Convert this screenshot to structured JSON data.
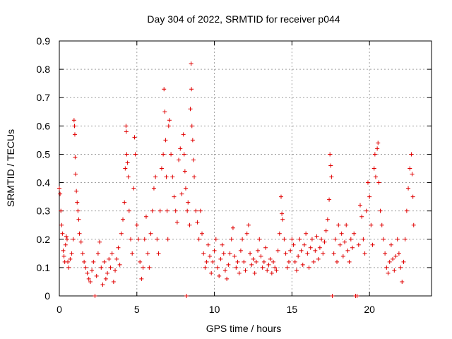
{
  "chart_data": {
    "type": "scatter",
    "title": "Day 304 of 2022, SRMTID for receiver p044",
    "xlabel": "GPS time / hours",
    "ylabel": "SRMTID / TECUs",
    "xlim": [
      0,
      24
    ],
    "ylim": [
      0,
      0.9
    ],
    "xticks": [
      0,
      5,
      10,
      15,
      20
    ],
    "xtick_labels": [
      "0",
      "5",
      "10",
      "15",
      "20"
    ],
    "yticks": [
      0,
      0.1,
      0.2,
      0.3,
      0.4,
      0.5,
      0.6,
      0.7,
      0.8,
      0.9
    ],
    "ytick_labels": [
      "0",
      "0.1",
      "0.2",
      "0.3",
      "0.4",
      "0.5",
      "0.6",
      "0.7",
      "0.8",
      "0.9"
    ],
    "grid": true,
    "marker": "+",
    "color": "#e00000",
    "series": [
      {
        "name": "SRMTID",
        "points": [
          [
            0.0,
            0.38
          ],
          [
            0.05,
            0.36
          ],
          [
            0.1,
            0.3
          ],
          [
            0.15,
            0.25
          ],
          [
            0.2,
            0.22
          ],
          [
            0.25,
            0.16
          ],
          [
            0.3,
            0.14
          ],
          [
            0.35,
            0.12
          ],
          [
            0.4,
            0.18
          ],
          [
            0.45,
            0.21
          ],
          [
            0.5,
            0.2
          ],
          [
            0.55,
            0.12
          ],
          [
            0.6,
            0.1
          ],
          [
            0.7,
            0.13
          ],
          [
            0.8,
            0.15
          ],
          [
            0.9,
            0.2
          ],
          [
            0.95,
            0.62
          ],
          [
            0.98,
            0.6
          ],
          [
            1.0,
            0.57
          ],
          [
            1.02,
            0.49
          ],
          [
            1.05,
            0.43
          ],
          [
            1.1,
            0.37
          ],
          [
            1.15,
            0.33
          ],
          [
            1.2,
            0.3
          ],
          [
            1.25,
            0.27
          ],
          [
            1.3,
            0.22
          ],
          [
            1.4,
            0.19
          ],
          [
            1.5,
            0.15
          ],
          [
            1.6,
            0.12
          ],
          [
            1.7,
            0.1
          ],
          [
            1.8,
            0.08
          ],
          [
            1.9,
            0.06
          ],
          [
            2.0,
            0.05
          ],
          [
            2.1,
            0.09
          ],
          [
            2.2,
            0.12
          ],
          [
            2.3,
            0.0
          ],
          [
            2.4,
            0.07
          ],
          [
            2.5,
            0.15
          ],
          [
            2.6,
            0.19
          ],
          [
            2.7,
            0.1
          ],
          [
            2.8,
            0.04
          ],
          [
            2.9,
            0.12
          ],
          [
            3.0,
            0.06
          ],
          [
            3.1,
            0.08
          ],
          [
            3.2,
            0.13
          ],
          [
            3.3,
            0.1
          ],
          [
            3.4,
            0.15
          ],
          [
            3.5,
            0.05
          ],
          [
            3.6,
            0.09
          ],
          [
            3.7,
            0.13
          ],
          [
            3.8,
            0.17
          ],
          [
            3.9,
            0.11
          ],
          [
            4.0,
            0.22
          ],
          [
            4.1,
            0.27
          ],
          [
            4.2,
            0.33
          ],
          [
            4.25,
            0.45
          ],
          [
            4.3,
            0.6
          ],
          [
            4.32,
            0.58
          ],
          [
            4.35,
            0.5
          ],
          [
            4.4,
            0.47
          ],
          [
            4.45,
            0.42
          ],
          [
            4.5,
            0.3
          ],
          [
            4.6,
            0.2
          ],
          [
            4.7,
            0.15
          ],
          [
            4.8,
            0.38
          ],
          [
            4.85,
            0.56
          ],
          [
            4.9,
            0.5
          ],
          [
            5.0,
            0.25
          ],
          [
            5.1,
            0.2
          ],
          [
            5.2,
            0.12
          ],
          [
            5.3,
            0.06
          ],
          [
            5.4,
            0.1
          ],
          [
            5.5,
            0.2
          ],
          [
            5.6,
            0.28
          ],
          [
            5.7,
            0.15
          ],
          [
            5.8,
            0.1
          ],
          [
            5.9,
            0.22
          ],
          [
            6.0,
            0.3
          ],
          [
            6.1,
            0.38
          ],
          [
            6.2,
            0.42
          ],
          [
            6.3,
            0.2
          ],
          [
            6.4,
            0.15
          ],
          [
            6.5,
            0.3
          ],
          [
            6.6,
            0.45
          ],
          [
            6.7,
            0.5
          ],
          [
            6.75,
            0.73
          ],
          [
            6.8,
            0.65
          ],
          [
            6.85,
            0.55
          ],
          [
            6.9,
            0.42
          ],
          [
            6.95,
            0.3
          ],
          [
            7.0,
            0.2
          ],
          [
            7.05,
            0.6
          ],
          [
            7.1,
            0.62
          ],
          [
            7.2,
            0.5
          ],
          [
            7.3,
            0.42
          ],
          [
            7.4,
            0.35
          ],
          [
            7.5,
            0.3
          ],
          [
            7.6,
            0.26
          ],
          [
            7.7,
            0.48
          ],
          [
            7.8,
            0.52
          ],
          [
            7.9,
            0.36
          ],
          [
            8.0,
            0.57
          ],
          [
            8.05,
            0.5
          ],
          [
            8.1,
            0.44
          ],
          [
            8.15,
            0.38
          ],
          [
            8.2,
            0.0
          ],
          [
            8.25,
            0.3
          ],
          [
            8.3,
            0.33
          ],
          [
            8.4,
            0.25
          ],
          [
            8.45,
            0.66
          ],
          [
            8.5,
            0.82
          ],
          [
            8.52,
            0.73
          ],
          [
            8.55,
            0.6
          ],
          [
            8.6,
            0.55
          ],
          [
            8.65,
            0.48
          ],
          [
            8.7,
            0.42
          ],
          [
            8.8,
            0.3
          ],
          [
            8.9,
            0.26
          ],
          [
            9.0,
            0.2
          ],
          [
            9.1,
            0.3
          ],
          [
            9.2,
            0.22
          ],
          [
            9.3,
            0.15
          ],
          [
            9.4,
            0.1
          ],
          [
            9.5,
            0.12
          ],
          [
            9.6,
            0.18
          ],
          [
            9.7,
            0.14
          ],
          [
            9.8,
            0.08
          ],
          [
            9.9,
            0.12
          ],
          [
            10.0,
            0.16
          ],
          [
            10.1,
            0.2
          ],
          [
            10.2,
            0.1
          ],
          [
            10.3,
            0.07
          ],
          [
            10.4,
            0.13
          ],
          [
            10.5,
            0.18
          ],
          [
            10.6,
            0.15
          ],
          [
            10.7,
            0.09
          ],
          [
            10.8,
            0.06
          ],
          [
            10.9,
            0.11
          ],
          [
            11.0,
            0.15
          ],
          [
            11.1,
            0.2
          ],
          [
            11.2,
            0.24
          ],
          [
            11.3,
            0.14
          ],
          [
            11.4,
            0.1
          ],
          [
            11.5,
            0.12
          ],
          [
            11.6,
            0.08
          ],
          [
            11.7,
            0.16
          ],
          [
            11.8,
            0.2
          ],
          [
            11.9,
            0.12
          ],
          [
            12.0,
            0.09
          ],
          [
            12.1,
            0.22
          ],
          [
            12.2,
            0.25
          ],
          [
            12.3,
            0.15
          ],
          [
            12.4,
            0.11
          ],
          [
            12.5,
            0.13
          ],
          [
            12.6,
            0.08
          ],
          [
            12.7,
            0.12
          ],
          [
            12.8,
            0.16
          ],
          [
            12.9,
            0.2
          ],
          [
            13.0,
            0.14
          ],
          [
            13.1,
            0.1
          ],
          [
            13.2,
            0.12
          ],
          [
            13.3,
            0.17
          ],
          [
            13.4,
            0.09
          ],
          [
            13.5,
            0.11
          ],
          [
            13.6,
            0.13
          ],
          [
            13.7,
            0.08
          ],
          [
            13.8,
            0.12
          ],
          [
            13.9,
            0.1
          ],
          [
            14.0,
            0.09
          ],
          [
            14.1,
            0.16
          ],
          [
            14.2,
            0.22
          ],
          [
            14.3,
            0.35
          ],
          [
            14.35,
            0.29
          ],
          [
            14.4,
            0.27
          ],
          [
            14.5,
            0.2
          ],
          [
            14.6,
            0.15
          ],
          [
            14.7,
            0.1
          ],
          [
            14.8,
            0.12
          ],
          [
            14.9,
            0.16
          ],
          [
            15.0,
            0.2
          ],
          [
            15.1,
            0.18
          ],
          [
            15.2,
            0.12
          ],
          [
            15.3,
            0.09
          ],
          [
            15.4,
            0.14
          ],
          [
            15.5,
            0.2
          ],
          [
            15.6,
            0.16
          ],
          [
            15.7,
            0.11
          ],
          [
            15.8,
            0.18
          ],
          [
            15.9,
            0.22
          ],
          [
            16.0,
            0.15
          ],
          [
            16.1,
            0.1
          ],
          [
            16.2,
            0.17
          ],
          [
            16.3,
            0.2
          ],
          [
            16.4,
            0.12
          ],
          [
            16.5,
            0.16
          ],
          [
            16.6,
            0.21
          ],
          [
            16.7,
            0.13
          ],
          [
            16.8,
            0.17
          ],
          [
            16.9,
            0.2
          ],
          [
            17.0,
            0.15
          ],
          [
            17.1,
            0.19
          ],
          [
            17.2,
            0.23
          ],
          [
            17.3,
            0.27
          ],
          [
            17.4,
            0.34
          ],
          [
            17.45,
            0.5
          ],
          [
            17.5,
            0.46
          ],
          [
            17.55,
            0.42
          ],
          [
            17.6,
            0.0
          ],
          [
            17.7,
            0.15
          ],
          [
            17.8,
            0.2
          ],
          [
            17.9,
            0.12
          ],
          [
            18.0,
            0.25
          ],
          [
            18.1,
            0.18
          ],
          [
            18.2,
            0.22
          ],
          [
            18.3,
            0.14
          ],
          [
            18.4,
            0.19
          ],
          [
            18.5,
            0.25
          ],
          [
            18.6,
            0.16
          ],
          [
            18.7,
            0.12
          ],
          [
            18.8,
            0.2
          ],
          [
            18.9,
            0.17
          ],
          [
            19.0,
            0.22
          ],
          [
            19.1,
            0.0
          ],
          [
            19.2,
            0.0
          ],
          [
            19.3,
            0.18
          ],
          [
            19.4,
            0.32
          ],
          [
            19.5,
            0.28
          ],
          [
            19.6,
            0.2
          ],
          [
            19.7,
            0.15
          ],
          [
            19.8,
            0.3
          ],
          [
            19.9,
            0.4
          ],
          [
            20.0,
            0.35
          ],
          [
            20.1,
            0.25
          ],
          [
            20.2,
            0.18
          ],
          [
            20.3,
            0.45
          ],
          [
            20.35,
            0.5
          ],
          [
            20.4,
            0.42
          ],
          [
            20.5,
            0.52
          ],
          [
            20.55,
            0.54
          ],
          [
            20.6,
            0.4
          ],
          [
            20.7,
            0.3
          ],
          [
            20.8,
            0.25
          ],
          [
            20.9,
            0.2
          ],
          [
            21.0,
            0.15
          ],
          [
            21.1,
            0.1
          ],
          [
            21.2,
            0.08
          ],
          [
            21.3,
            0.12
          ],
          [
            21.4,
            0.18
          ],
          [
            21.5,
            0.13
          ],
          [
            21.6,
            0.09
          ],
          [
            21.7,
            0.14
          ],
          [
            21.8,
            0.2
          ],
          [
            21.9,
            0.15
          ],
          [
            22.0,
            0.1
          ],
          [
            22.1,
            0.05
          ],
          [
            22.2,
            0.12
          ],
          [
            22.3,
            0.2
          ],
          [
            22.4,
            0.3
          ],
          [
            22.5,
            0.38
          ],
          [
            22.6,
            0.45
          ],
          [
            22.7,
            0.5
          ],
          [
            22.75,
            0.43
          ],
          [
            22.8,
            0.35
          ],
          [
            22.85,
            0.25
          ]
        ]
      }
    ]
  }
}
